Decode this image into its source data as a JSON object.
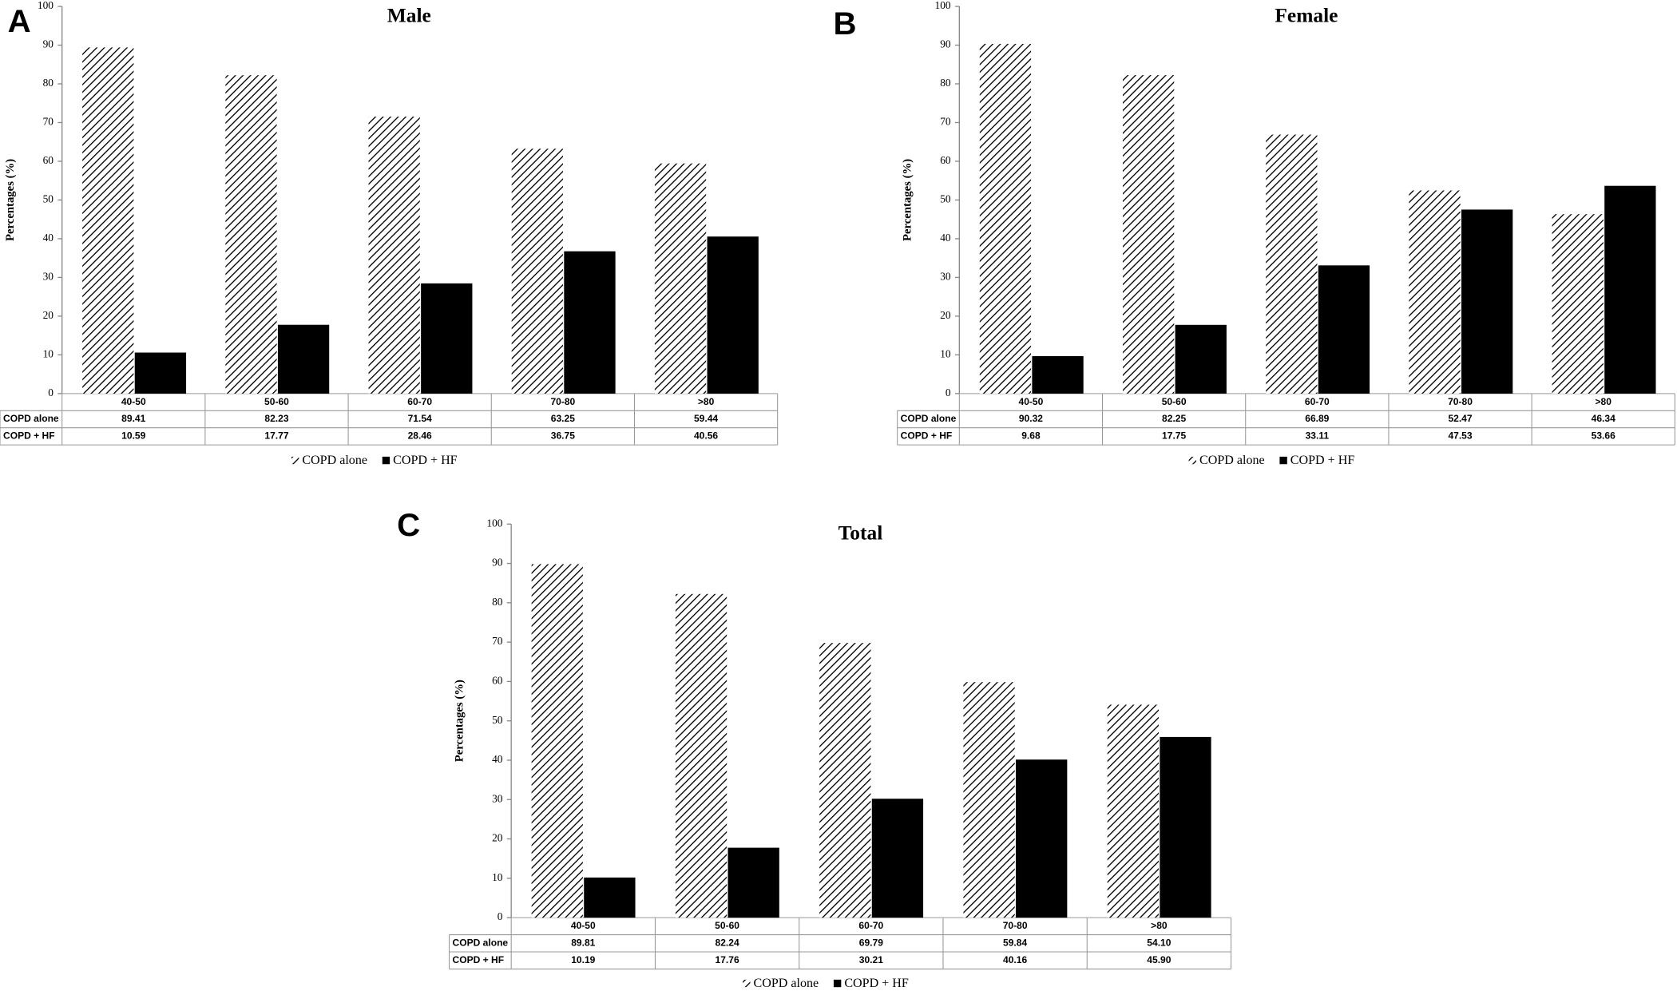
{
  "chart_data": [
    {
      "type": "bar",
      "panel": "A",
      "title": "Male",
      "ylabel": "Percentages (%)",
      "categories": [
        "40-50",
        "50-60",
        "60-70",
        "70-80",
        ">80"
      ],
      "series": [
        {
          "name": "COPD alone",
          "color": "#000000",
          "pattern": "diagonal",
          "values": [
            89.41,
            82.23,
            71.54,
            63.25,
            59.44
          ],
          "value_labels": [
            "89.41",
            "82.23",
            "71.54",
            "63.25",
            "59.44"
          ]
        },
        {
          "name": "COPD + HF",
          "color": "#000000",
          "pattern": "solid",
          "values": [
            10.59,
            17.77,
            28.46,
            36.75,
            40.56
          ],
          "value_labels": [
            "10.59",
            "17.77",
            "28.46",
            "36.75",
            "40.56"
          ]
        }
      ],
      "ylim": [
        0,
        100
      ],
      "yticks": [
        0,
        10,
        20,
        30,
        40,
        50,
        60,
        70,
        80,
        90,
        100
      ],
      "legend": "bottom"
    },
    {
      "type": "bar",
      "panel": "B",
      "title": "Female",
      "ylabel": "Percentages (%)",
      "categories": [
        "40-50",
        "50-60",
        "60-70",
        "70-80",
        ">80"
      ],
      "series": [
        {
          "name": "COPD alone",
          "color": "#000000",
          "pattern": "diagonal",
          "values": [
            90.32,
            82.25,
            66.89,
            52.47,
            46.34
          ],
          "value_labels": [
            "90.32",
            "82.25",
            "66.89",
            "52.47",
            "46.34"
          ]
        },
        {
          "name": "COPD + HF",
          "color": "#000000",
          "pattern": "solid",
          "values": [
            9.68,
            17.75,
            33.11,
            47.53,
            53.66
          ],
          "value_labels": [
            "9.68",
            "17.75",
            "33.11",
            "47.53",
            "53.66"
          ]
        }
      ],
      "ylim": [
        0,
        100
      ],
      "yticks": [
        0,
        10,
        20,
        30,
        40,
        50,
        60,
        70,
        80,
        90,
        100
      ],
      "legend": "bottom"
    },
    {
      "type": "bar",
      "panel": "C",
      "title": "Total",
      "ylabel": "Percentages (%)",
      "categories": [
        "40-50",
        "50-60",
        "60-70",
        "70-80",
        ">80"
      ],
      "series": [
        {
          "name": "COPD alone",
          "color": "#000000",
          "pattern": "diagonal",
          "values": [
            89.81,
            82.24,
            69.79,
            59.84,
            54.1
          ],
          "value_labels": [
            "89.81",
            "82.24",
            "69.79",
            "59.84",
            "54.10"
          ]
        },
        {
          "name": "COPD + HF",
          "color": "#000000",
          "pattern": "solid",
          "values": [
            10.19,
            17.76,
            30.21,
            40.16,
            45.9
          ],
          "value_labels": [
            "10.19",
            "17.76",
            "30.21",
            "40.16",
            "45.90"
          ]
        }
      ],
      "ylim": [
        0,
        100
      ],
      "yticks": [
        0,
        10,
        20,
        30,
        40,
        50,
        60,
        70,
        80,
        90,
        100
      ],
      "legend": "bottom"
    }
  ]
}
